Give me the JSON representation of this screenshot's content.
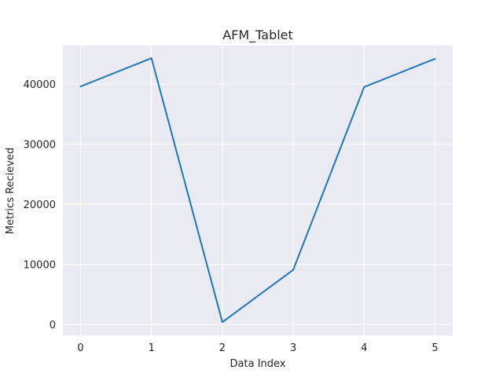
{
  "chart_data": {
    "type": "line",
    "title": "AFM_Tablet",
    "xlabel": "Data Index",
    "ylabel": "Metrics Recieved",
    "x": [
      0,
      1,
      2,
      3,
      4,
      5
    ],
    "series": [
      {
        "values": [
          39600,
          44300,
          400,
          9100,
          39500,
          44200
        ],
        "color": "#1f77b4"
      }
    ],
    "xlim": [
      -0.25,
      5.25
    ],
    "ylim": [
      -1800,
      46400
    ],
    "xticks": [
      0,
      1,
      2,
      3,
      4,
      5
    ],
    "yticks": [
      0,
      10000,
      20000,
      30000,
      40000
    ],
    "grid": true,
    "background": "#eaeaf2",
    "grid_color": "#ffffff"
  }
}
